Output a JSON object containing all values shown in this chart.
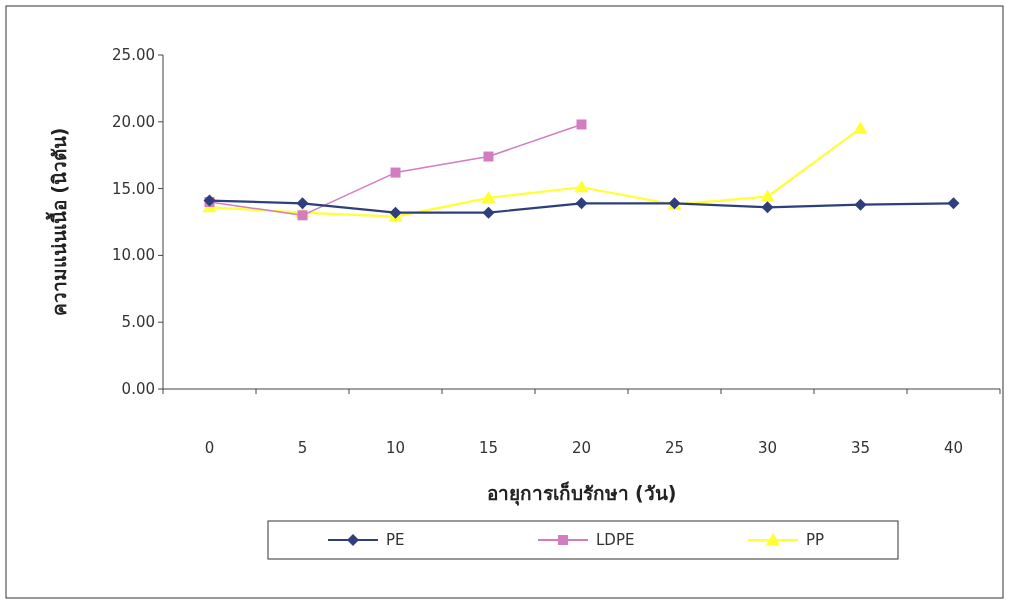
{
  "chart_data": {
    "type": "line",
    "xlabel": "อายุการเก็บรักษา (วัน)",
    "ylabel": "ความแน่นเนื้อ (นิวตัน)",
    "categories": [
      "0",
      "5",
      "10",
      "15",
      "20",
      "25",
      "30",
      "35",
      "40"
    ],
    "series": [
      {
        "name": "PE",
        "color": "#2e3f7c",
        "marker": "diamond",
        "values": [
          14.1,
          13.9,
          13.2,
          13.2,
          13.9,
          13.9,
          13.6,
          13.8,
          13.9
        ]
      },
      {
        "name": "LDPE",
        "color": "#d37cc0",
        "marker": "square",
        "values": [
          14.0,
          13.0,
          16.2,
          17.4,
          19.8,
          null,
          null,
          null,
          null
        ]
      },
      {
        "name": "PP",
        "color": "#ffff33",
        "marker": "triangle",
        "values": [
          13.6,
          13.2,
          12.9,
          14.3,
          15.1,
          13.8,
          14.4,
          19.5,
          null
        ]
      }
    ],
    "ylim": [
      0,
      25
    ],
    "yticks": [
      {
        "value": 0,
        "label": "0.00"
      },
      {
        "value": 5,
        "label": "5.00"
      },
      {
        "value": 10,
        "label": "10.00"
      },
      {
        "value": 15,
        "label": "15.00"
      },
      {
        "value": 20,
        "label": "20.00"
      },
      {
        "value": 25,
        "label": "25.00"
      }
    ],
    "grid": false,
    "legend": "bottom",
    "line_style": "solid"
  }
}
